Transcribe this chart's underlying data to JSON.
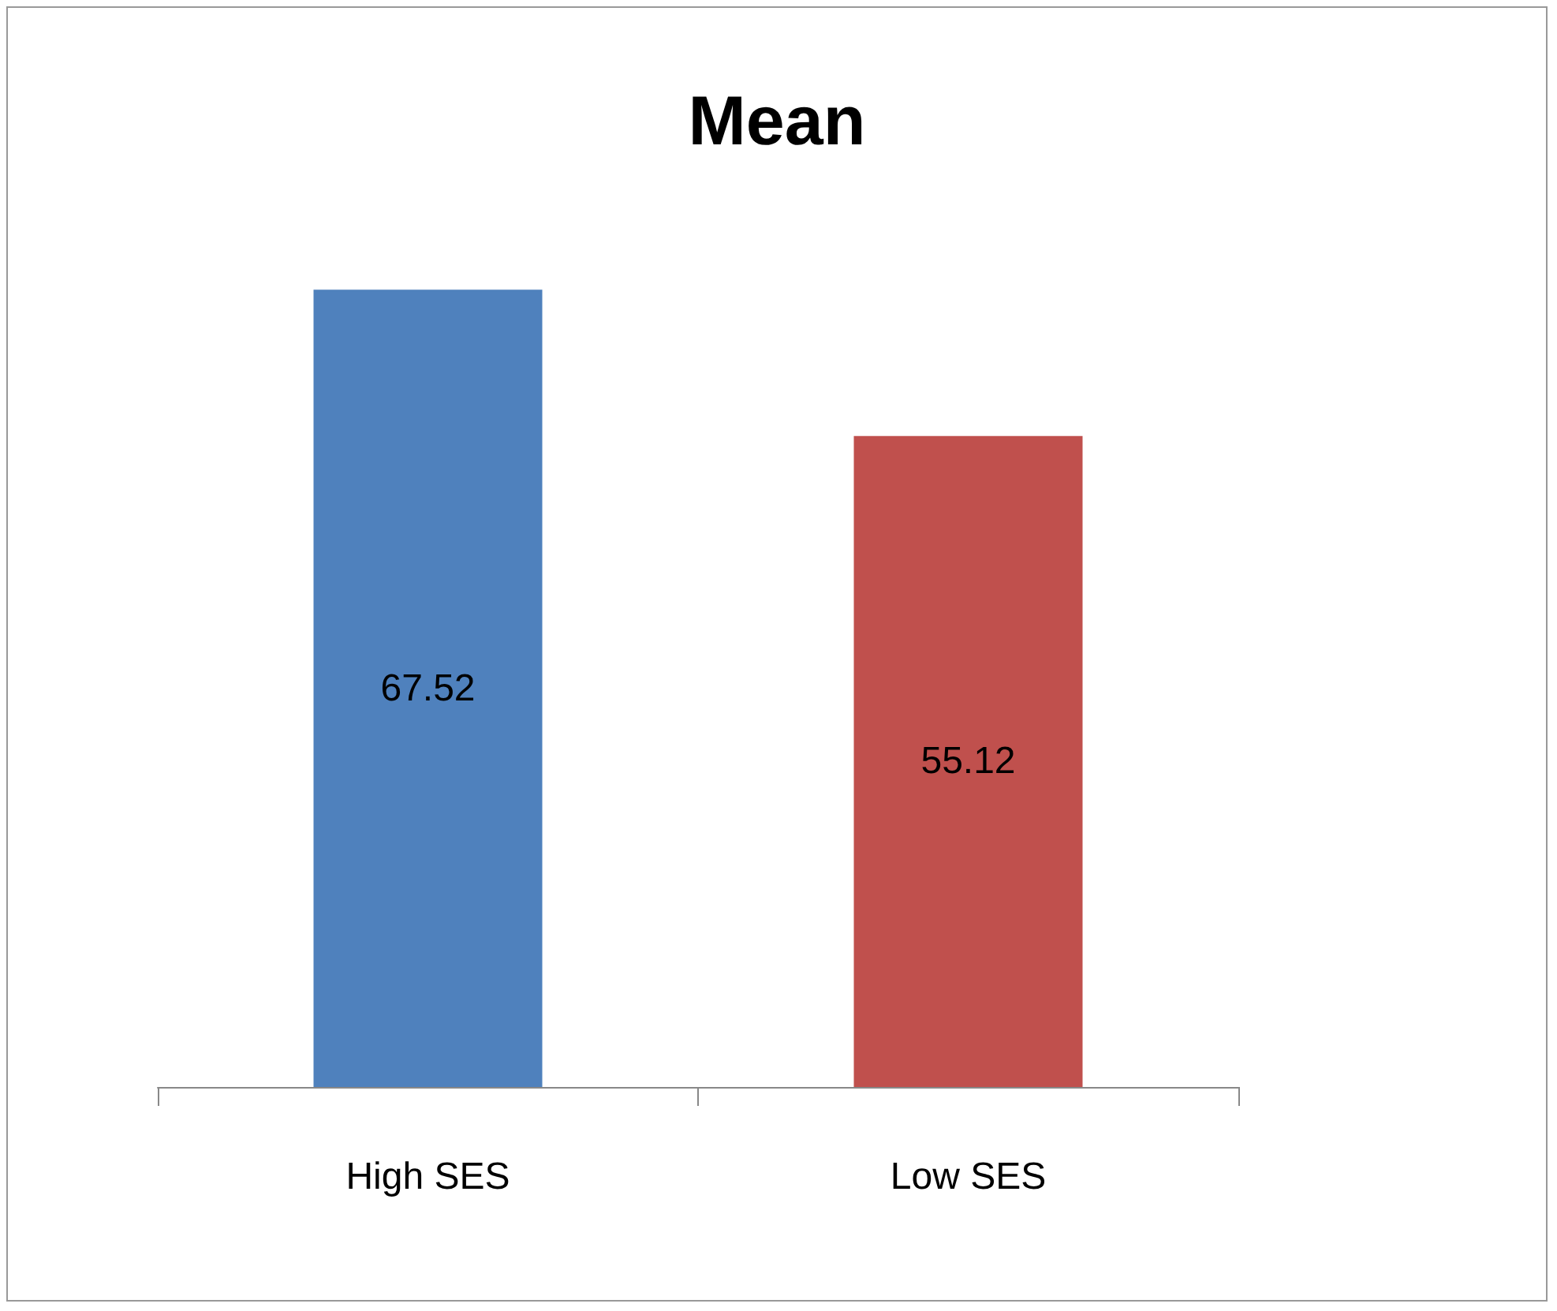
{
  "chart_data": {
    "type": "bar",
    "title": "Mean",
    "categories": [
      "High SES",
      "Low SES"
    ],
    "values": [
      67.52,
      55.12
    ],
    "colors": [
      "#4f81bd",
      "#c0504d"
    ],
    "data_labels": true,
    "tick_labels": "x"
  }
}
